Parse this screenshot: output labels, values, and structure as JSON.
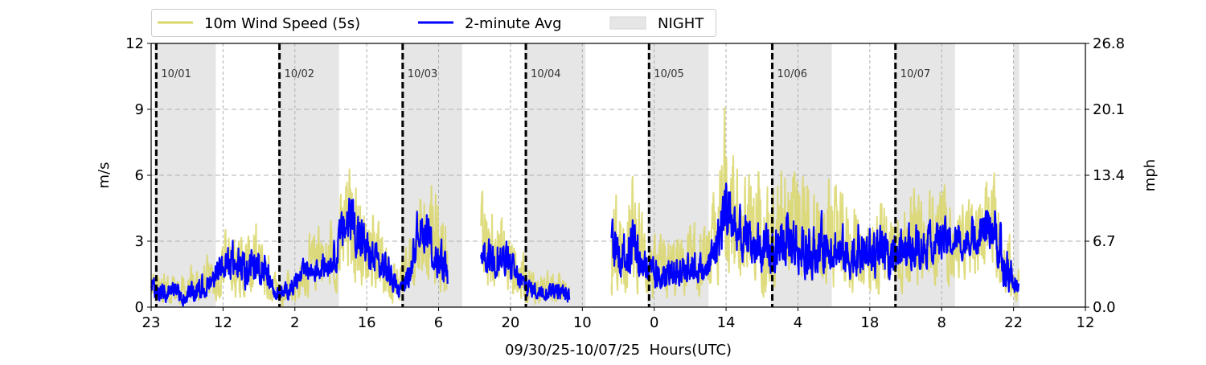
{
  "chart_data": {
    "type": "line",
    "xlabel": "09/30/25-10/07/25  Hours(UTC)",
    "ylabel_left": "m/s",
    "ylabel_right": "mph",
    "ylim": [
      0,
      12
    ],
    "ylim_right": [
      0.0,
      26.8
    ],
    "xlim_hours_from_start": [
      0,
      182
    ],
    "x_tick_labels": [
      "23",
      "12",
      "2",
      "16",
      "6",
      "20",
      "10",
      "0",
      "14",
      "4",
      "18",
      "8",
      "22",
      "12"
    ],
    "x_tick_step_hours": 14,
    "y_ticks": [
      0,
      3,
      6,
      9,
      12
    ],
    "y_tick_labels": [
      "0",
      "3",
      "6",
      "9",
      "12"
    ],
    "y_right_tick_labels": [
      "0.0",
      "6.7",
      "13.4",
      "20.1",
      "26.8"
    ],
    "grid": true,
    "legend": {
      "placement": "top-left outside",
      "items": [
        {
          "label": "10m Wind Speed (5s)",
          "color": "#d9d66a",
          "kind": "line"
        },
        {
          "label": "2-minute Avg",
          "color": "#0000ff",
          "kind": "line"
        },
        {
          "label": "NIGHT",
          "color": "#e6e6e6",
          "kind": "patch"
        }
      ]
    },
    "day_markers": [
      {
        "label": "10/01",
        "hour": 1
      },
      {
        "label": "10/02",
        "hour": 25
      },
      {
        "label": "10/03",
        "hour": 49
      },
      {
        "label": "10/04",
        "hour": 73
      },
      {
        "label": "10/05",
        "hour": 97
      },
      {
        "label": "10/06",
        "hour": 121
      },
      {
        "label": "10/07",
        "hour": 145
      }
    ],
    "night_periods_hours": [
      [
        0.7,
        12.6
      ],
      [
        24.7,
        36.6
      ],
      [
        48.7,
        60.6
      ],
      [
        72.7,
        84.6
      ],
      [
        96.7,
        108.6
      ],
      [
        120.7,
        132.6
      ],
      [
        144.7,
        156.6
      ],
      [
        168.0,
        169.1
      ]
    ],
    "data_gaps_hours": [
      [
        57.8,
        64.2
      ],
      [
        81.5,
        89.6
      ]
    ],
    "data_end_hour": 169.1,
    "series_envelope_columns": [
      "hour",
      "avg_low",
      "avg_high",
      "gust5s_low",
      "gust5s_high"
    ],
    "series_envelope": [
      [
        0,
        0.3,
        1.8,
        0,
        2.5
      ],
      [
        2,
        0,
        1.2,
        0,
        2
      ],
      [
        4,
        0.3,
        1.5,
        0,
        2
      ],
      [
        6,
        0,
        1.0,
        0,
        1.8
      ],
      [
        8,
        0,
        1.3,
        0,
        2.2
      ],
      [
        10,
        0.2,
        1.8,
        0,
        2.8
      ],
      [
        12,
        0.5,
        2.0,
        0,
        2.8
      ],
      [
        14,
        1.0,
        3.0,
        0.2,
        4.5
      ],
      [
        16,
        1.0,
        3.5,
        0.2,
        4.5
      ],
      [
        18,
        0.5,
        2.8,
        0,
        4.0
      ],
      [
        20,
        1.0,
        3.3,
        0.2,
        4.5
      ],
      [
        22,
        0.8,
        3.0,
        0,
        4.0
      ],
      [
        24,
        0.3,
        1.0,
        0,
        1.8
      ],
      [
        26,
        0.2,
        1.2,
        0,
        1.8
      ],
      [
        28,
        0.5,
        1.8,
        0,
        2.5
      ],
      [
        30,
        1.0,
        2.5,
        0.3,
        3.5
      ],
      [
        32,
        1.0,
        2.6,
        0.3,
        4.5
      ],
      [
        34,
        1.2,
        3.0,
        0.5,
        4.2
      ],
      [
        36,
        1.5,
        3.5,
        0.5,
        4.5
      ],
      [
        38,
        2.5,
        6.0,
        1.0,
        8.0
      ],
      [
        40,
        2.0,
        5.5,
        0.8,
        7.2
      ],
      [
        42,
        1.5,
        4.0,
        0.5,
        5.5
      ],
      [
        44,
        1.0,
        3.3,
        0.2,
        4.8
      ],
      [
        46,
        0.8,
        3.0,
        0,
        4.5
      ],
      [
        48,
        0.3,
        1.2,
        0,
        2.5
      ],
      [
        50,
        0.5,
        2.0,
        0,
        3.5
      ],
      [
        52,
        2.5,
        5.0,
        1.0,
        7.5
      ],
      [
        54,
        2.0,
        4.8,
        0.8,
        6.8
      ],
      [
        56,
        0.5,
        3.5,
        0,
        6.5
      ],
      [
        57.8,
        0.5,
        3.0,
        0,
        5.5
      ],
      [
        64.2,
        1.5,
        4.0,
        0.5,
        5.8
      ],
      [
        66,
        1.2,
        3.5,
        0.5,
        5.0
      ],
      [
        68,
        1.0,
        4.0,
        0.3,
        5.5
      ],
      [
        70,
        0.8,
        3.0,
        0.2,
        4.5
      ],
      [
        72,
        0.5,
        2.0,
        0,
        3.5
      ],
      [
        74,
        0.3,
        1.5,
        0,
        2.5
      ],
      [
        76,
        0.2,
        1.2,
        0,
        1.8
      ],
      [
        78,
        0.3,
        1.5,
        0,
        2.0
      ],
      [
        80,
        0.2,
        1.2,
        0,
        1.8
      ],
      [
        81.5,
        0,
        1.0,
        0,
        1.5
      ],
      [
        89.6,
        1.0,
        4.5,
        0,
        6.5
      ],
      [
        92,
        1.2,
        4.0,
        0.3,
        6.0
      ],
      [
        94,
        1.0,
        5.0,
        0.2,
        7.8
      ],
      [
        96,
        1.0,
        3.0,
        0.2,
        5.5
      ],
      [
        98,
        0.5,
        2.5,
        0,
        3.5
      ],
      [
        100,
        0.5,
        2.5,
        0,
        4.0
      ],
      [
        102,
        0.8,
        2.8,
        0,
        4.5
      ],
      [
        104,
        0.8,
        3.0,
        0.2,
        4.0
      ],
      [
        106,
        1.0,
        3.0,
        0.2,
        4.5
      ],
      [
        108,
        0.8,
        2.5,
        0.2,
        4.0
      ],
      [
        110,
        1.5,
        4.5,
        0.5,
        6.5
      ],
      [
        112,
        2.5,
        7.3,
        1.0,
        11.2
      ],
      [
        114,
        2.0,
        5.5,
        0.8,
        8.5
      ],
      [
        116,
        1.5,
        4.5,
        0.5,
        7.0
      ],
      [
        118,
        1.5,
        4.5,
        0.5,
        8.0
      ],
      [
        120,
        1.0,
        4.0,
        0.2,
        6.5
      ],
      [
        122,
        1.2,
        4.5,
        0.3,
        7.0
      ],
      [
        124,
        1.5,
        5.5,
        0.5,
        8.5
      ],
      [
        126,
        1.2,
        4.5,
        0.3,
        7.5
      ],
      [
        128,
        1.0,
        4.0,
        0.2,
        6.5
      ],
      [
        130,
        1.2,
        4.5,
        0.3,
        6.0
      ],
      [
        132,
        1.5,
        5.0,
        0.5,
        7.0
      ],
      [
        134,
        1.2,
        4.2,
        0.3,
        6.0
      ],
      [
        136,
        1.0,
        4.0,
        0.3,
        6.5
      ],
      [
        138,
        1.2,
        4.5,
        0.3,
        6.0
      ],
      [
        140,
        1.0,
        4.0,
        0.2,
        5.5
      ],
      [
        142,
        1.0,
        4.2,
        0.2,
        6.0
      ],
      [
        144,
        0.8,
        3.5,
        0.2,
        5.5
      ],
      [
        146,
        1.5,
        4.0,
        0.5,
        6.0
      ],
      [
        148,
        1.5,
        4.2,
        0.5,
        6.2
      ],
      [
        150,
        1.5,
        4.5,
        0.5,
        6.0
      ],
      [
        152,
        1.8,
        4.0,
        0.8,
        6.5
      ],
      [
        154,
        2.0,
        4.5,
        0.8,
        6.5
      ],
      [
        156,
        2.0,
        4.2,
        0.8,
        5.5
      ],
      [
        158,
        2.0,
        4.0,
        1.0,
        5.5
      ],
      [
        160,
        2.2,
        4.5,
        1.0,
        6.0
      ],
      [
        162,
        2.2,
        5.0,
        1.0,
        6.5
      ],
      [
        164,
        2.5,
        5.5,
        1.0,
        7.0
      ],
      [
        166,
        0,
        4.0,
        0.3,
        5.0
      ],
      [
        168,
        0.5,
        2.0,
        0,
        3.0
      ],
      [
        169.1,
        0.5,
        1.5,
        0,
        2.0
      ]
    ]
  }
}
